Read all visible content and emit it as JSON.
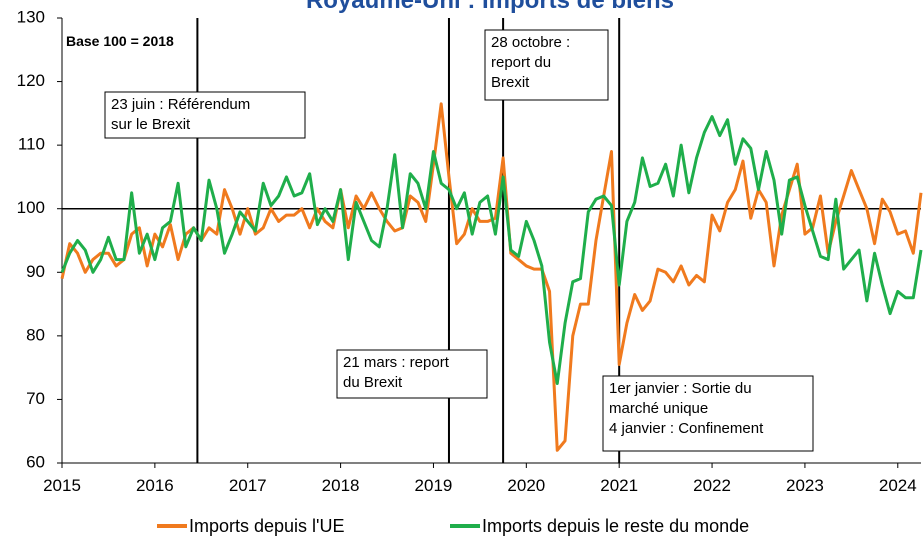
{
  "chart_data": {
    "type": "line",
    "title": "Royaume-Uni : Imports de biens",
    "subtitle": "Base 100 = 2018",
    "x": [
      2015,
      2015.083,
      2015.167,
      2015.25,
      2015.333,
      2015.417,
      2015.5,
      2015.583,
      2015.667,
      2015.75,
      2015.833,
      2015.917,
      2016,
      2016.083,
      2016.167,
      2016.25,
      2016.333,
      2016.417,
      2016.5,
      2016.583,
      2016.667,
      2016.75,
      2016.833,
      2016.917,
      2017,
      2017.083,
      2017.167,
      2017.25,
      2017.333,
      2017.417,
      2017.5,
      2017.583,
      2017.667,
      2017.75,
      2017.833,
      2017.917,
      2018,
      2018.083,
      2018.167,
      2018.25,
      2018.333,
      2018.417,
      2018.5,
      2018.583,
      2018.667,
      2018.75,
      2018.833,
      2018.917,
      2019,
      2019.083,
      2019.167,
      2019.25,
      2019.333,
      2019.417,
      2019.5,
      2019.583,
      2019.667,
      2019.75,
      2019.833,
      2019.917,
      2020,
      2020.083,
      2020.167,
      2020.25,
      2020.333,
      2020.417,
      2020.5,
      2020.583,
      2020.667,
      2020.75,
      2020.833,
      2020.917,
      2021,
      2021.083,
      2021.167,
      2021.25,
      2021.333,
      2021.417,
      2021.5,
      2021.583,
      2021.667,
      2021.75,
      2021.833,
      2021.917,
      2022,
      2022.083,
      2022.167,
      2022.25,
      2022.333,
      2022.417,
      2022.5,
      2022.583,
      2022.667,
      2022.75,
      2022.833,
      2022.917,
      2023,
      2023.083,
      2023.167,
      2023.25,
      2023.333,
      2023.417,
      2023.5,
      2023.583,
      2023.667,
      2023.75,
      2023.833,
      2023.917,
      2024,
      2024.083,
      2024.167,
      2024.25
    ],
    "series": [
      {
        "name": "Imports depuis l'UE",
        "color": "#f07a1e",
        "values": [
          89,
          94.5,
          93,
          90,
          92,
          93,
          93,
          91,
          92,
          96,
          97,
          91,
          96,
          94,
          97.5,
          92,
          96,
          97,
          95,
          97,
          96,
          103,
          100,
          96,
          100,
          96,
          97,
          100,
          98,
          99,
          99,
          100,
          97,
          100,
          98,
          97,
          103,
          97,
          102,
          100,
          102.5,
          100,
          98,
          96.5,
          97,
          102,
          101,
          98,
          107,
          116.5,
          105,
          94.5,
          96,
          100,
          98,
          98,
          98.5,
          108,
          93,
          92,
          91,
          90.5,
          90.5,
          87,
          62,
          63.5,
          80,
          85,
          85,
          95,
          102,
          109,
          75.5,
          82,
          86.5,
          84,
          85.5,
          90.5,
          90,
          88.5,
          91,
          88,
          89.5,
          88.5,
          99,
          96.5,
          101,
          103,
          107.5,
          98.5,
          103,
          101,
          91,
          99,
          103,
          107,
          96,
          97,
          102,
          93,
          98,
          102,
          106,
          103,
          100,
          94.5,
          101.5,
          99.5,
          96,
          96.5,
          93,
          102.5
        ]
      },
      {
        "name": "Imports depuis le reste du monde",
        "color": "#1fae4b",
        "values": [
          90,
          93,
          95,
          93.5,
          90,
          92,
          95.5,
          92,
          92,
          102.5,
          93,
          96,
          92,
          97,
          98,
          104,
          94,
          97,
          95,
          104.5,
          100,
          93,
          96,
          99.5,
          98,
          96.5,
          104,
          100.5,
          102,
          105,
          102,
          102.5,
          105.5,
          97.5,
          100,
          98,
          103,
          92,
          101,
          98,
          95,
          94,
          100,
          108.5,
          97,
          105.5,
          104,
          100,
          109,
          104,
          103,
          100,
          102.5,
          96,
          101,
          102,
          96,
          105,
          93.5,
          92.5,
          98,
          95,
          91,
          79,
          72.5,
          82,
          88.5,
          89,
          99.5,
          101.5,
          102,
          100.5,
          88,
          98,
          101,
          108,
          103.5,
          104,
          107,
          102,
          110,
          102.5,
          108,
          112,
          114.5,
          111.5,
          114,
          107,
          111,
          109.5,
          103,
          109,
          104.5,
          96,
          104.5,
          105,
          100.5,
          96.5,
          92.5,
          92,
          101.5,
          90.5,
          92,
          93.5,
          85.5,
          93,
          88,
          83.5,
          87,
          86,
          86,
          93.5
        ]
      }
    ],
    "xlim": [
      2015,
      2024.25
    ],
    "xticks": [
      2015,
      2016,
      2017,
      2018,
      2019,
      2020,
      2021,
      2022,
      2023,
      2024
    ],
    "ylim": [
      60,
      130
    ],
    "yticks": [
      60,
      70,
      80,
      90,
      100,
      110,
      120,
      130
    ],
    "hline": 100,
    "legend": "bottom",
    "annotations": [
      {
        "x": 2016.458,
        "lines": [
          "23 juin : Référendum",
          "sur le Brexit"
        ]
      },
      {
        "x": 2019.167,
        "lines": [
          "21 mars : report",
          "du Brexit"
        ]
      },
      {
        "x": 2019.75,
        "lines": [
          "28 octobre :",
          "report du",
          "Brexit"
        ]
      },
      {
        "x": 2021,
        "lines": [
          "1er janvier : Sortie du",
          "marché unique",
          "4 janvier : Confinement"
        ]
      }
    ]
  }
}
